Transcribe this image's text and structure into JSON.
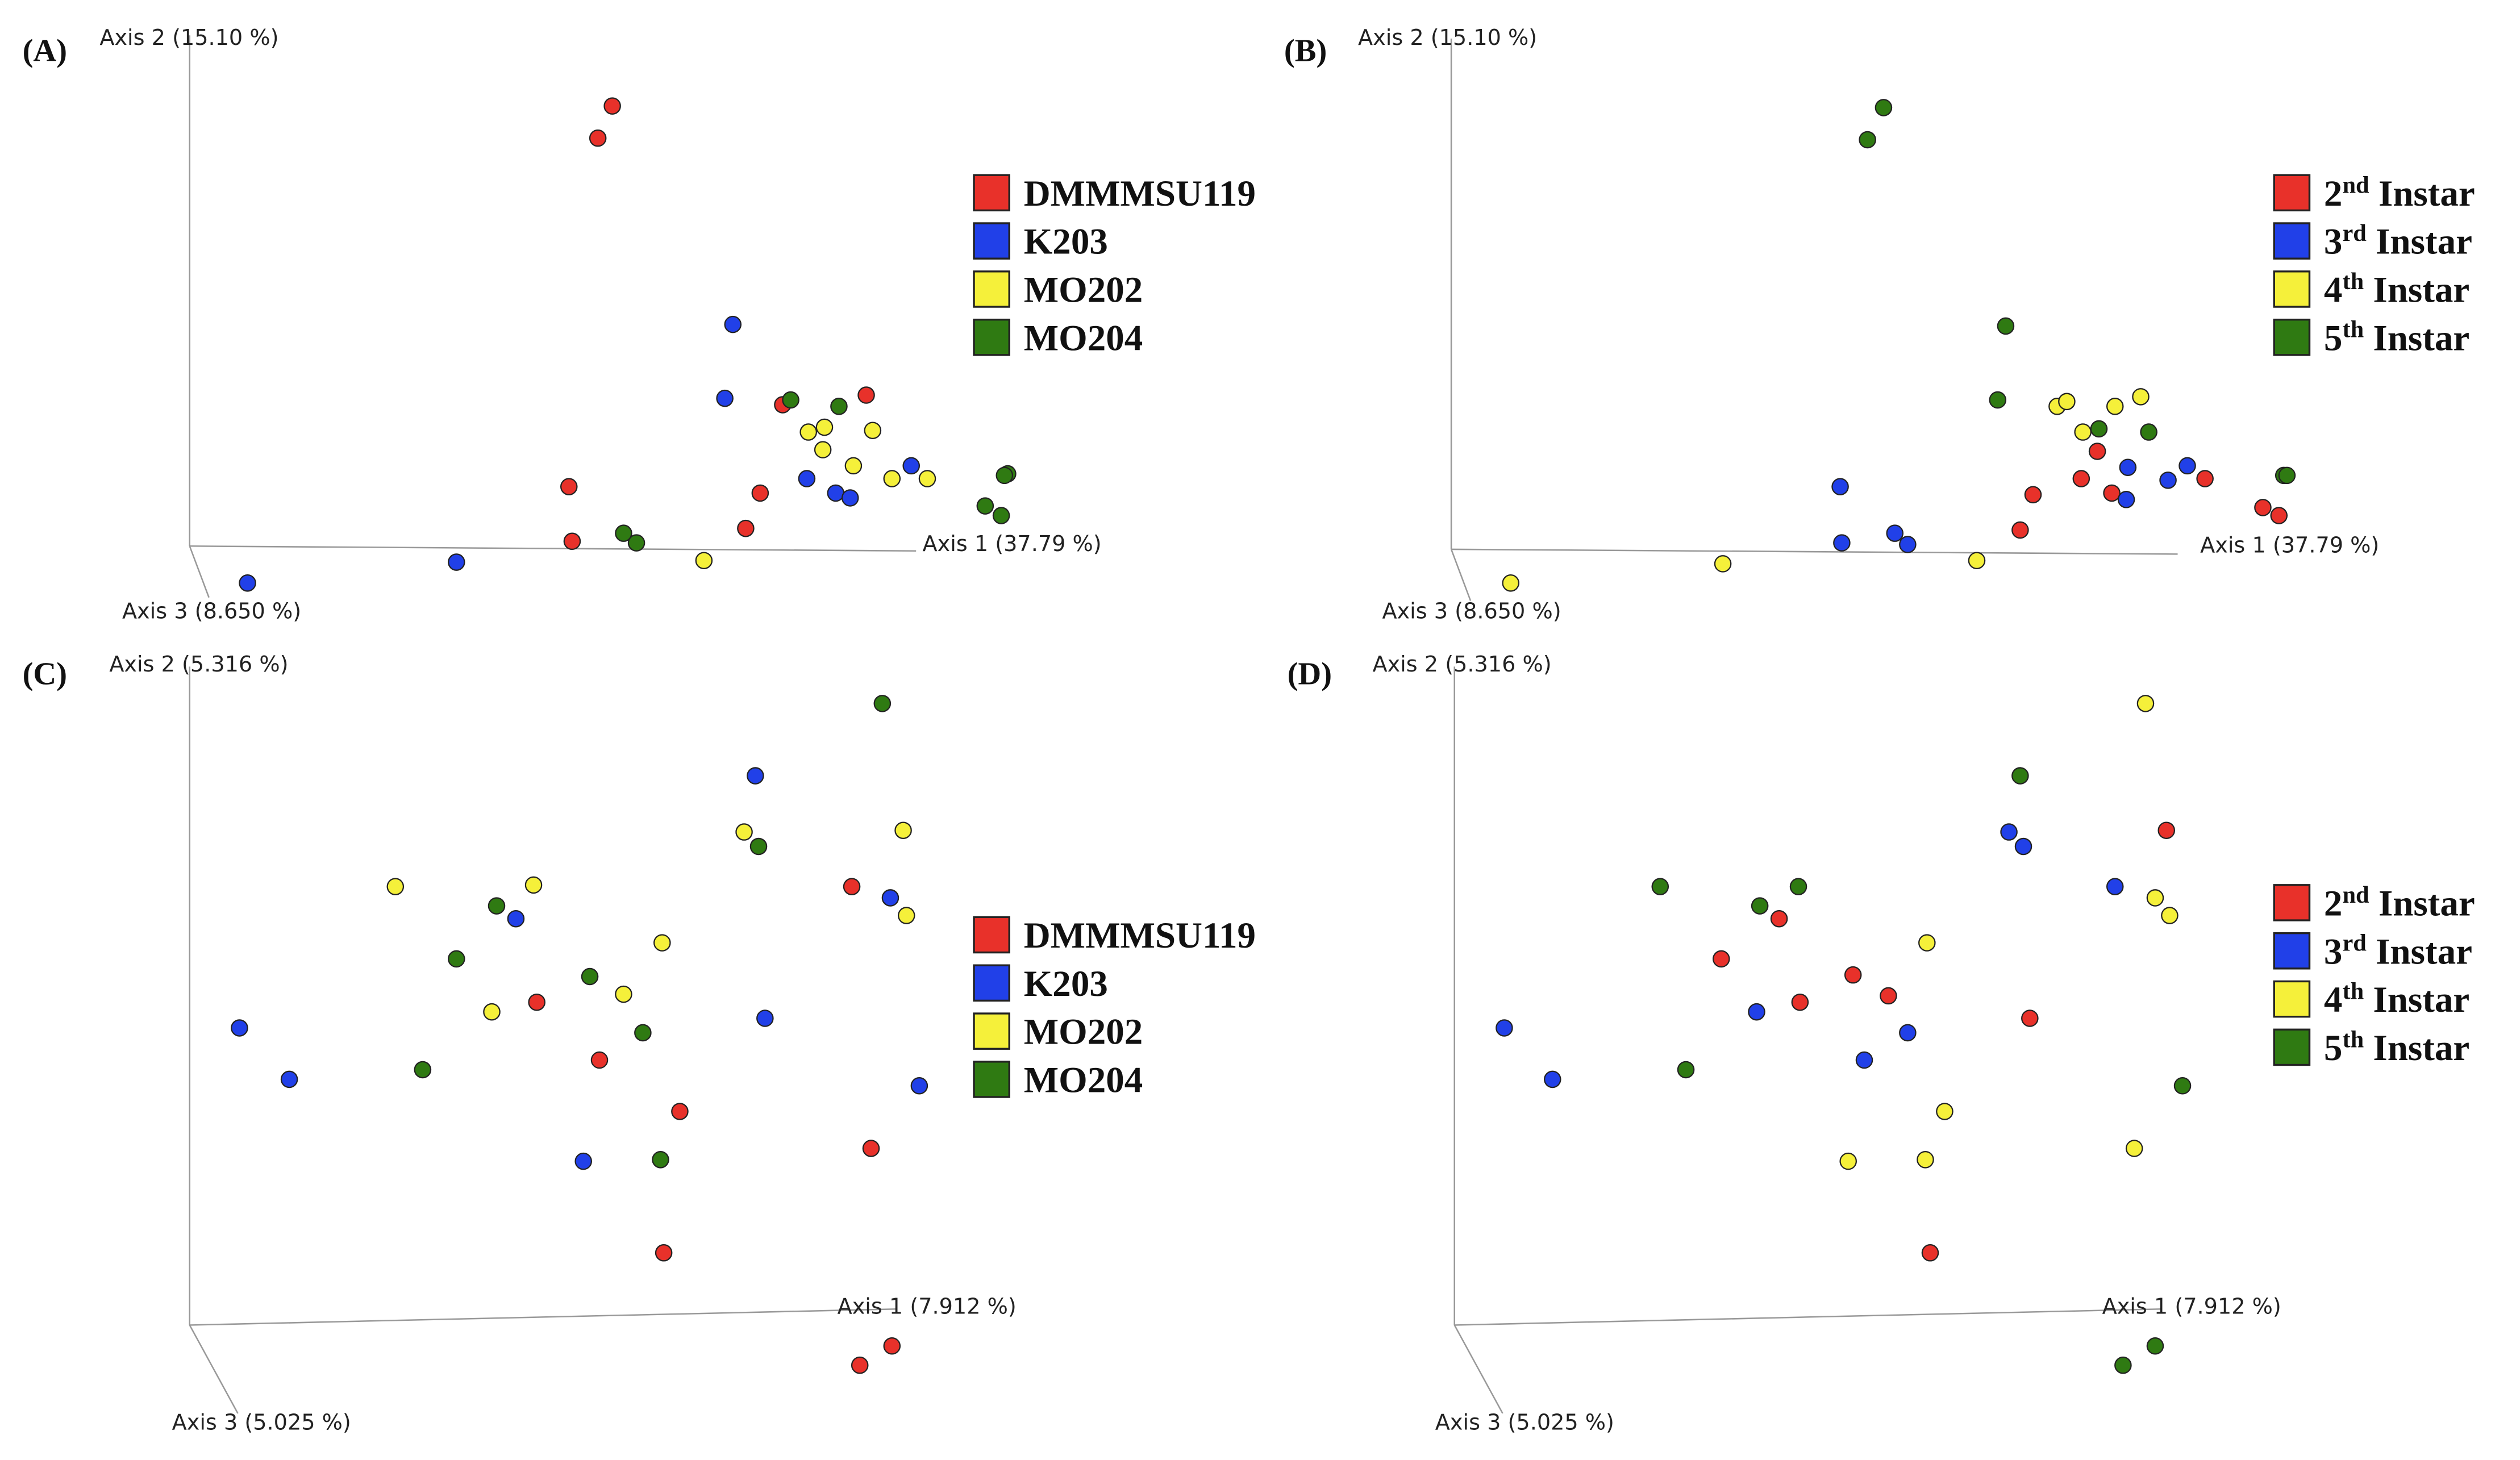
{
  "chart_data": [
    {
      "type": "scatter",
      "panel_label": "(A)",
      "x_axis_label": "Axis 1 (37.79 %)",
      "y_axis_label": "Axis 2 (15.10 %)",
      "z_axis_label": "Axis 3 (8.650 %)",
      "series": [
        {
          "name": "DMMMSU119",
          "color": "#e8312a",
          "x": [
            263,
            254,
            369,
            421,
            236,
            355,
            238,
            346
          ],
          "y": [
            274,
            254,
            88,
            94,
            37,
            33,
            3,
            11
          ]
        },
        {
          "name": "K203",
          "color": "#2140e8",
          "x": [
            338,
            333,
            449,
            384,
            402,
            411,
            166,
            36
          ],
          "y": [
            138,
            92,
            50,
            42,
            33,
            30,
            -10,
            -23
          ]
        },
        {
          "name": "MO202",
          "color": "#f5f03a",
          "x": [
            385,
            395,
            425,
            394,
            413,
            437,
            459,
            320
          ],
          "y": [
            71,
            74,
            72,
            60,
            50,
            42,
            42,
            -9
          ]
        },
        {
          "name": "MO204",
          "color": "#2f7a12",
          "x": [
            374,
            404,
            509,
            495,
            505,
            270,
            278,
            507
          ],
          "y": [
            91,
            87,
            45,
            25,
            19,
            8,
            2,
            44
          ]
        }
      ]
    },
    {
      "type": "scatter",
      "panel_label": "(B)",
      "x_axis_label": "Axis 1 (37.79 %)",
      "y_axis_label": "Axis 2 (15.10 %)",
      "z_axis_label": "Axis 3 (8.650 %)",
      "series": [
        {
          "name": "2nd Instar",
          "color": "#e8312a",
          "x": [
            402,
            392,
            362,
            411,
            469,
            505,
            515,
            354
          ],
          "y": [
            61,
            44,
            34,
            35,
            44,
            26,
            21,
            12
          ]
        },
        {
          "name": "3rd Instar",
          "color": "#2140e8",
          "x": [
            242,
            421,
            458,
            446,
            420,
            276,
            284,
            243
          ],
          "y": [
            39,
            51,
            52,
            43,
            31,
            10,
            3,
            4
          ]
        },
        {
          "name": "4th Instar",
          "color": "#f5f03a",
          "x": [
            377,
            383,
            413,
            429,
            393,
            37,
            169,
            327
          ],
          "y": [
            89,
            92,
            89,
            95,
            73,
            -21,
            -9,
            -7
          ]
        },
        {
          "name": "5th Instar",
          "color": "#2f7a12",
          "x": [
            269,
            259,
            345,
            340,
            403,
            434,
            518,
            520
          ],
          "y": [
            275,
            255,
            139,
            93,
            75,
            73,
            46,
            46
          ]
        }
      ]
    },
    {
      "type": "scatter",
      "panel_label": "(C)",
      "x_axis_label": "Axis 1 (7.912 %)",
      "y_axis_label": "Axis 2 (5.316 %)",
      "z_axis_label": "Axis 3 (5.025 %)",
      "series": [
        {
          "name": "DMMMSU119",
          "color": "#e8312a",
          "x": [
            412,
            216,
            255,
            305,
            424,
            295,
            437,
            417
          ],
          "y": [
            273,
            201,
            165,
            133,
            110,
            45,
            -13,
            -25
          ]
        },
        {
          "name": "K203",
          "color": "#2140e8",
          "x": [
            352,
            436,
            203,
            358,
            31,
            62,
            454,
            245
          ],
          "y": [
            342,
            266,
            253,
            191,
            185,
            153,
            149,
            102
          ]
        },
        {
          "name": "MO202",
          "color": "#f5f03a",
          "x": [
            128,
            214,
            345,
            444,
            446,
            294,
            270,
            188
          ],
          "y": [
            273,
            274,
            307,
            308,
            255,
            238,
            206,
            195
          ]
        },
        {
          "name": "MO204",
          "color": "#2f7a12",
          "x": [
            431,
            354,
            191,
            166,
            249,
            282,
            145,
            293
          ],
          "y": [
            387,
            298,
            261,
            228,
            217,
            182,
            159,
            103
          ]
        }
      ]
    },
    {
      "type": "scatter",
      "panel_label": "(D)",
      "x_axis_label": "Axis 1 (7.912 %)",
      "y_axis_label": "Axis 2 (5.316 %)",
      "z_axis_label": "Axis 3 (5.025 %)",
      "series": [
        {
          "name": "2nd Instar",
          "color": "#e8312a",
          "x": [
            443,
            202,
            166,
            248,
            270,
            215,
            358,
            296
          ],
          "y": [
            308,
            253,
            228,
            218,
            205,
            201,
            191,
            45
          ]
        },
        {
          "name": "3rd Instar",
          "color": "#2140e8",
          "x": [
            345,
            354,
            411,
            188,
            282,
            255,
            31,
            61
          ],
          "y": [
            307,
            298,
            273,
            195,
            182,
            165,
            185,
            153
          ]
        },
        {
          "name": "4th Instar",
          "color": "#f5f03a",
          "x": [
            430,
            436,
            445,
            294,
            305,
            245,
            293,
            423
          ],
          "y": [
            387,
            266,
            255,
            238,
            133,
            102,
            103,
            110
          ]
        },
        {
          "name": "5th Instar",
          "color": "#2f7a12",
          "x": [
            352,
            128,
            190,
            214,
            144,
            453,
            436,
            416
          ],
          "y": [
            342,
            273,
            261,
            273,
            159,
            149,
            -13,
            -25
          ]
        }
      ]
    }
  ]
}
